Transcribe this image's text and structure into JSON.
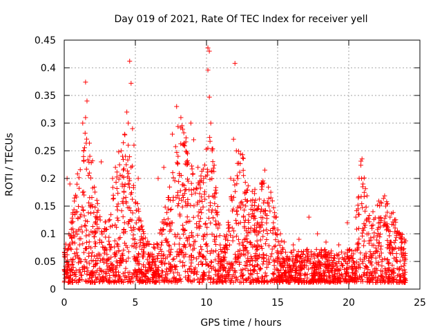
{
  "chart_data": {
    "type": "scatter",
    "title": "Day 019 of 2021, Rate Of TEC Index for receiver yell",
    "xlabel": "GPS time / hours",
    "ylabel": "ROTI / TECUs",
    "xlim": [
      0,
      25
    ],
    "ylim": [
      0,
      0.45
    ],
    "xticks": [
      0,
      5,
      10,
      15,
      20,
      25
    ],
    "xtick_labels": [
      "0",
      "5",
      "10",
      "15",
      "20",
      "25"
    ],
    "yticks": [
      0,
      0.05,
      0.1,
      0.15,
      0.2,
      0.25,
      0.3,
      0.35,
      0.4,
      0.45
    ],
    "ytick_labels": [
      "0",
      "0.05",
      "0.1",
      "0.15",
      "0.2",
      "0.25",
      "0.3",
      "0.35",
      "0.4",
      "0.45"
    ],
    "grid": true,
    "marker": "+",
    "color": "#ff0000",
    "series": [
      {
        "x": [
          0.2,
          0.4,
          1.3,
          1.5,
          1.5,
          1.6,
          1.8,
          2.3,
          2.6,
          3.4,
          3.6,
          4.0,
          4.1,
          4.3,
          4.4,
          4.5,
          4.5,
          4.6,
          4.7,
          4.8,
          4.9,
          5.2,
          6.6,
          7.0,
          7.6,
          7.9,
          8.0,
          8.2,
          8.4,
          8.6,
          8.9,
          9.1,
          9.4,
          9.8,
          10.1,
          10.1,
          10.2,
          10.2,
          10.3,
          10.4,
          11.7,
          11.9,
          12.0,
          12.1,
          12.2,
          12.3,
          12.6,
          13.4,
          14.1,
          14.4,
          14.7,
          15.2,
          16.1,
          16.5,
          17.2,
          17.8,
          18.4,
          19.3,
          19.9,
          20.5,
          20.9,
          21.0,
          21.4,
          21.7,
          22.2,
          22.6,
          22.9,
          23.5,
          23.9
        ],
        "y": [
          0.2,
          0.19,
          0.3,
          0.31,
          0.374,
          0.34,
          0.24,
          0.13,
          0.23,
          0.2,
          0.22,
          0.25,
          0.24,
          0.24,
          0.32,
          0.3,
          0.26,
          0.412,
          0.372,
          0.29,
          0.26,
          0.2,
          0.2,
          0.22,
          0.28,
          0.33,
          0.24,
          0.31,
          0.26,
          0.23,
          0.3,
          0.27,
          0.22,
          0.2,
          0.396,
          0.436,
          0.43,
          0.347,
          0.3,
          0.25,
          0.2,
          0.271,
          0.408,
          0.25,
          0.2,
          0.15,
          0.13,
          0.18,
          0.215,
          0.15,
          0.12,
          0.1,
          0.08,
          0.09,
          0.13,
          0.1,
          0.085,
          0.08,
          0.12,
          0.13,
          0.2,
          0.19,
          0.1,
          0.14,
          0.12,
          0.15,
          0.13,
          0.1,
          0.09
        ]
      }
    ]
  }
}
